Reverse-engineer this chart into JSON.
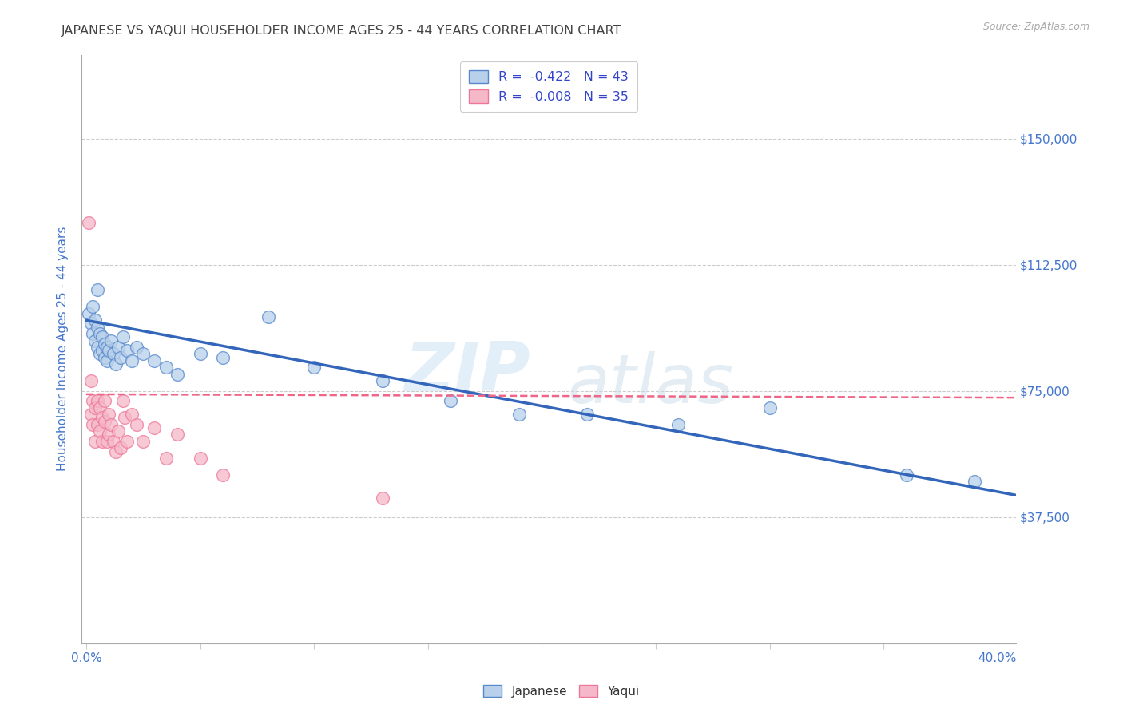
{
  "title": "JAPANESE VS YAQUI HOUSEHOLDER INCOME AGES 25 - 44 YEARS CORRELATION CHART",
  "source": "Source: ZipAtlas.com",
  "ylabel": "Householder Income Ages 25 - 44 years",
  "ylabel_ticks": [
    "$37,500",
    "$75,000",
    "$112,500",
    "$150,000"
  ],
  "ylabel_values": [
    37500,
    75000,
    112500,
    150000
  ],
  "ymin": 0,
  "ymax": 175000,
  "xmin": -0.002,
  "xmax": 0.408,
  "watermark_zip": "ZIP",
  "watermark_atlas": "atlas",
  "legend_japanese_R_val": "-0.422",
  "legend_japanese_N_val": "43",
  "legend_yaqui_R_val": "-0.008",
  "legend_yaqui_N_val": "35",
  "japanese_fill": "#b8d0ea",
  "yaqui_fill": "#f5b8c8",
  "japanese_edge": "#5588cc",
  "yaqui_edge": "#ee7799",
  "japanese_line_color": "#3366bb",
  "yaqui_line_color": "#ee6688",
  "title_color": "#444444",
  "source_color": "#aaaaaa",
  "axis_tick_color": "#4477cc",
  "ylabel_color": "#4477cc",
  "legend_text_color": "#3344cc",
  "legend_N_color": "#3344cc",
  "grid_color": "#cccccc",
  "background_color": "#ffffff",
  "japanese_scatter_x": [
    0.001,
    0.002,
    0.003,
    0.003,
    0.004,
    0.004,
    0.005,
    0.005,
    0.005,
    0.006,
    0.006,
    0.007,
    0.007,
    0.008,
    0.008,
    0.009,
    0.009,
    0.01,
    0.011,
    0.012,
    0.013,
    0.014,
    0.015,
    0.016,
    0.018,
    0.02,
    0.022,
    0.025,
    0.03,
    0.035,
    0.04,
    0.05,
    0.06,
    0.08,
    0.1,
    0.13,
    0.16,
    0.19,
    0.22,
    0.26,
    0.3,
    0.36,
    0.39
  ],
  "japanese_scatter_y": [
    98000,
    95000,
    100000,
    92000,
    96000,
    90000,
    94000,
    88000,
    105000,
    92000,
    86000,
    91000,
    87000,
    89000,
    85000,
    88000,
    84000,
    87000,
    90000,
    86000,
    83000,
    88000,
    85000,
    91000,
    87000,
    84000,
    88000,
    86000,
    84000,
    82000,
    80000,
    86000,
    85000,
    97000,
    82000,
    78000,
    72000,
    68000,
    68000,
    65000,
    70000,
    50000,
    48000
  ],
  "yaqui_scatter_x": [
    0.001,
    0.002,
    0.002,
    0.003,
    0.003,
    0.004,
    0.004,
    0.005,
    0.005,
    0.006,
    0.006,
    0.007,
    0.007,
    0.008,
    0.008,
    0.009,
    0.01,
    0.01,
    0.011,
    0.012,
    0.013,
    0.014,
    0.015,
    0.016,
    0.017,
    0.018,
    0.02,
    0.022,
    0.025,
    0.03,
    0.035,
    0.04,
    0.05,
    0.06,
    0.13
  ],
  "yaqui_scatter_y": [
    125000,
    78000,
    68000,
    72000,
    65000,
    70000,
    60000,
    72000,
    65000,
    70000,
    63000,
    67000,
    60000,
    72000,
    66000,
    60000,
    68000,
    62000,
    65000,
    60000,
    57000,
    63000,
    58000,
    72000,
    67000,
    60000,
    68000,
    65000,
    60000,
    64000,
    55000,
    62000,
    55000,
    50000,
    43000
  ],
  "japanese_trendline_x": [
    0.0,
    0.408
  ],
  "japanese_trendline_y": [
    96000,
    44000
  ],
  "yaqui_trendline_x": [
    0.0,
    0.408
  ],
  "yaqui_trendline_y": [
    74000,
    73000
  ]
}
